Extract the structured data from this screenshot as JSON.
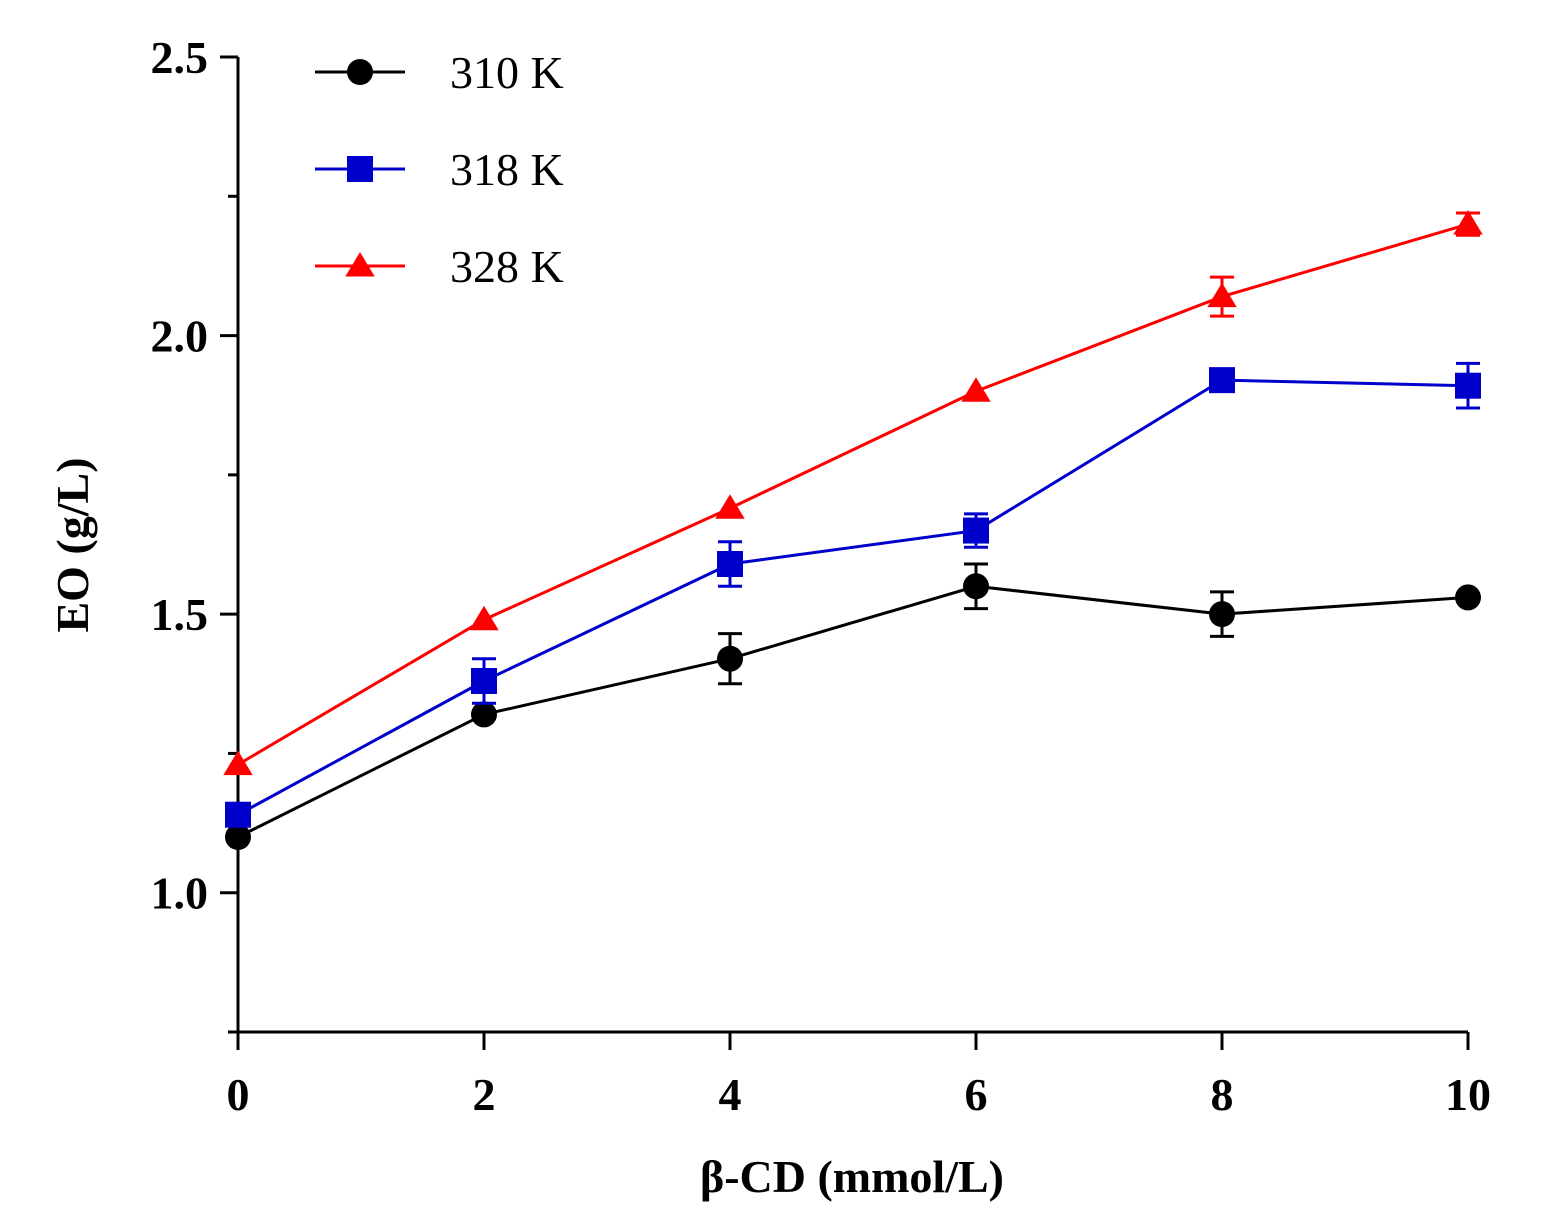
{
  "chart_data": {
    "type": "line",
    "title": "",
    "xlabel": "β-CD (mmol/L)",
    "ylabel": "EO (g/L)",
    "x": [
      0,
      2,
      4,
      6,
      8,
      10
    ],
    "xlim": [
      0,
      10
    ],
    "ylim": [
      0.75,
      2.5
    ],
    "xticks": [
      0,
      2,
      4,
      6,
      8,
      10
    ],
    "xtick_labels": [
      "0",
      "2",
      "4",
      "6",
      "8",
      "10"
    ],
    "yticks": [
      1.0,
      1.5,
      2.0,
      2.5
    ],
    "ytick_labels": [
      "1.0",
      "1.5",
      "2.0",
      "2.5"
    ],
    "y_minor_ticks": [
      0.75,
      1.25,
      1.75,
      2.25
    ],
    "grid": false,
    "legend_position": "top-left",
    "series": [
      {
        "name": "310 K",
        "color": "#000000",
        "marker": "circle",
        "values": [
          1.1,
          1.32,
          1.42,
          1.55,
          1.5,
          1.53
        ],
        "errors": [
          0.0,
          0.0,
          0.045,
          0.04,
          0.04,
          0.0
        ]
      },
      {
        "name": "318 K",
        "color": "#0000cc",
        "marker": "square",
        "values": [
          1.14,
          1.38,
          1.59,
          1.65,
          1.92,
          1.91
        ],
        "errors": [
          0.0,
          0.04,
          0.04,
          0.03,
          0.02,
          0.04
        ]
      },
      {
        "name": "328 K",
        "color": "#ff0000",
        "marker": "triangle",
        "values": [
          1.23,
          1.49,
          1.69,
          1.9,
          2.07,
          2.2
        ],
        "errors": [
          0.0,
          0.0,
          0.0,
          0.0,
          0.035,
          0.02
        ]
      }
    ]
  }
}
